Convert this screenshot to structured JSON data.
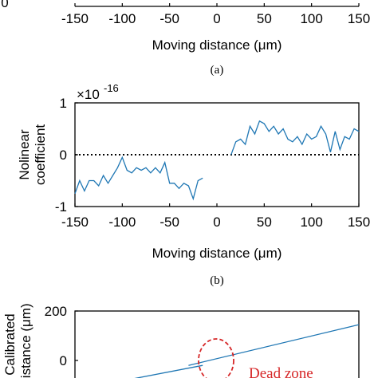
{
  "chart_data": [
    {
      "type": "line",
      "xlim": [
        -150,
        150
      ],
      "xticks": [
        "-150",
        "-100",
        "-50",
        "0",
        "50",
        "100",
        "150"
      ],
      "yticks": [
        "0"
      ],
      "xlabel": "Moving distance (μm)",
      "caption": "(a)"
    },
    {
      "type": "line",
      "xlim": [
        -150,
        150
      ],
      "ylim": [
        -1,
        1
      ],
      "xticks": [
        "-150",
        "-100",
        "-50",
        "0",
        "50",
        "100",
        "150"
      ],
      "yticks": [
        "1",
        "0",
        "-1"
      ],
      "exponent_label": "×10",
      "exponent_power": "-16",
      "ylabel_line1": "Nolinear",
      "ylabel_line2": "coefficient",
      "xlabel": "Moving distance (μm)",
      "caption": "(b)",
      "reference_line": {
        "y": 0,
        "style": "dotted"
      },
      "series": [
        {
          "color": "#1f77b4",
          "x": [
            -150,
            -145,
            -140,
            -135,
            -130,
            -125,
            -120,
            -115,
            -110,
            -105,
            -100,
            -95,
            -90,
            -85,
            -80,
            -75,
            -70,
            -65,
            -60,
            -55,
            -50,
            -45,
            -40,
            -35,
            -30,
            -25,
            -20,
            -15
          ],
          "y": [
            -0.75,
            -0.5,
            -0.7,
            -0.5,
            -0.5,
            -0.6,
            -0.4,
            -0.55,
            -0.4,
            -0.25,
            -0.05,
            -0.3,
            -0.35,
            -0.25,
            -0.3,
            -0.25,
            -0.35,
            -0.25,
            -0.35,
            -0.15,
            -0.55,
            -0.55,
            -0.65,
            -0.55,
            -0.6,
            -0.85,
            -0.5,
            -0.45
          ]
        },
        {
          "color": "#1f77b4",
          "x": [
            15,
            20,
            25,
            30,
            35,
            40,
            45,
            50,
            55,
            60,
            65,
            70,
            75,
            80,
            85,
            90,
            95,
            100,
            105,
            110,
            115,
            120,
            125,
            130,
            135,
            140,
            145,
            150
          ],
          "y": [
            0.0,
            0.25,
            0.3,
            0.2,
            0.55,
            0.4,
            0.65,
            0.6,
            0.45,
            0.55,
            0.4,
            0.5,
            0.3,
            0.25,
            0.35,
            0.2,
            0.4,
            0.3,
            0.35,
            0.55,
            0.4,
            0.05,
            0.45,
            0.1,
            0.35,
            0.3,
            0.5,
            0.45
          ]
        }
      ]
    },
    {
      "type": "line",
      "xlim": [
        -150,
        150
      ],
      "yticks": [
        "200",
        "0"
      ],
      "ylabel_line1": "Calibrated",
      "ylabel_line2": "distance (μm)",
      "annotation": "Dead zone",
      "series": [
        {
          "color": "#1f77b4",
          "x": [
            -30,
            150
          ],
          "y": [
            -20,
            145
          ]
        },
        {
          "color": "#1f77b4",
          "x": [
            -90,
            -15
          ],
          "y": [
            -75,
            -20
          ]
        }
      ]
    }
  ]
}
